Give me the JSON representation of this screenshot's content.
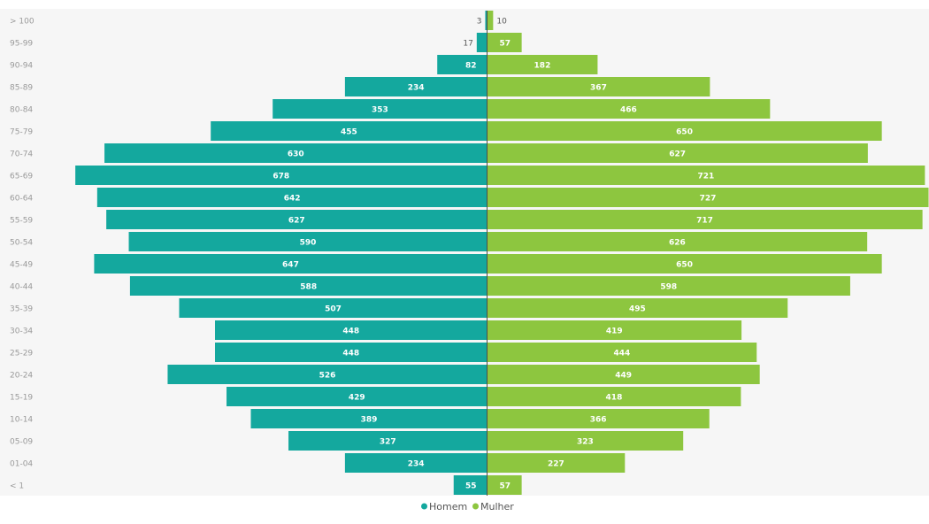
{
  "chart_data": {
    "type": "bar",
    "orientation": "horizontal-diverging",
    "title": "",
    "xlabel": "",
    "ylabel": "",
    "grid": false,
    "legend_position": "bottom-center",
    "categories": [
      "> 100",
      "95-99",
      "90-94",
      "85-89",
      "80-84",
      "75-79",
      "70-74",
      "65-69",
      "60-64",
      "55-59",
      "50-54",
      "45-49",
      "40-44",
      "35-39",
      "30-34",
      "25-29",
      "20-24",
      "15-19",
      "10-14",
      "05-09",
      "01-04",
      "< 1"
    ],
    "series": [
      {
        "name": "Homem",
        "color": "#14a89e",
        "values": [
          3,
          17,
          82,
          234,
          353,
          455,
          630,
          678,
          642,
          627,
          590,
          647,
          588,
          507,
          448,
          448,
          526,
          429,
          389,
          327,
          234,
          55
        ]
      },
      {
        "name": "Mulher",
        "color": "#8dc63f",
        "values": [
          10,
          57,
          182,
          367,
          466,
          650,
          627,
          721,
          727,
          717,
          626,
          650,
          598,
          495,
          419,
          444,
          449,
          418,
          366,
          323,
          227,
          57
        ]
      }
    ],
    "xlim": [
      -727,
      727
    ]
  },
  "colors": {
    "plot_background": "#f6f6f6",
    "label_text": "#9a9a9a",
    "axis_line": "#4d4d4d"
  }
}
